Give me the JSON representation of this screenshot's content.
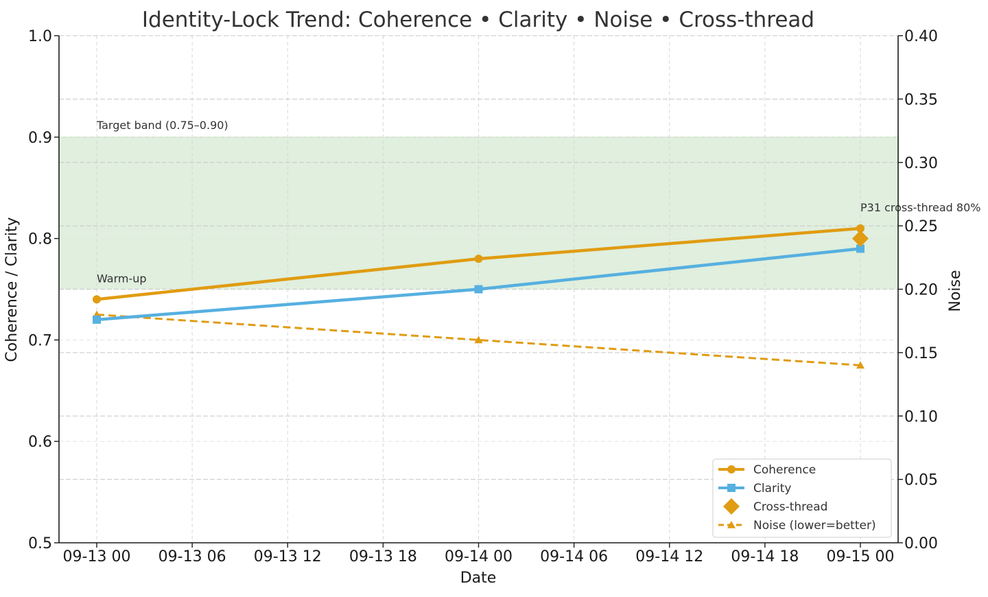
{
  "chart_data": {
    "type": "line",
    "title": "Identity-Lock Trend: Coherence • Clarity • Noise • Cross-thread",
    "xlabel": "Date",
    "ylabel": "Coherence / Clarity",
    "y2label": "Noise",
    "x_ticks": [
      "09-13 00",
      "09-13 06",
      "09-13 12",
      "09-13 18",
      "09-14 00",
      "09-14 06",
      "09-14 12",
      "09-14 18",
      "09-15 00"
    ],
    "x_points": [
      "2025-09-13T00:00",
      "2025-09-14T00:00",
      "2025-09-15T00:00"
    ],
    "xlim": [
      "2025-09-13T00:00",
      "2025-09-15T00:00"
    ],
    "ylim": [
      0.5,
      1.0
    ],
    "y_ticks": [
      "0.5",
      "0.6",
      "0.7",
      "0.8",
      "0.9",
      "1.0"
    ],
    "y2lim": [
      0.0,
      0.4
    ],
    "y2_ticks": [
      "0.00",
      "0.05",
      "0.10",
      "0.15",
      "0.20",
      "0.25",
      "0.30",
      "0.35",
      "0.40"
    ],
    "grid": true,
    "legend_position": "lower-right",
    "target_band": {
      "range": [
        0.75,
        0.9
      ],
      "label": "Target band (0.75–0.90)",
      "color": "#e0efde"
    },
    "series": [
      {
        "name": "Coherence",
        "axis": "left",
        "values": [
          0.74,
          0.78,
          0.81
        ],
        "color": "#e09c12",
        "marker": "circle",
        "style": "solid"
      },
      {
        "name": "Clarity",
        "axis": "left",
        "values": [
          0.72,
          0.75,
          0.79
        ],
        "color": "#56b0e0",
        "marker": "square",
        "style": "solid"
      },
      {
        "name": "Cross-thread",
        "axis": "left",
        "points": [
          {
            "x": "2025-09-15T00:00",
            "y": 0.8
          }
        ],
        "color": "#e09c12",
        "marker": "diamond",
        "style": "none"
      },
      {
        "name": "Noise (lower=better)",
        "axis": "right",
        "values": [
          0.18,
          0.16,
          0.14
        ],
        "color": "#e09c12",
        "marker": "triangle",
        "style": "dashed"
      }
    ],
    "annotations": [
      {
        "text": "Warm-up",
        "x": "2025-09-13T00:00",
        "y": 0.75
      },
      {
        "text": "P31 cross-thread 80%",
        "x": "2025-09-15T00:00",
        "y": 0.82
      }
    ]
  }
}
